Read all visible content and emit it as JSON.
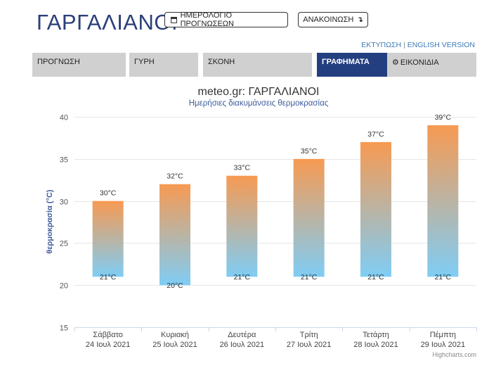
{
  "header": {
    "city_title": "ΓΑΡΓΑΛΙΑΝΟΙ",
    "calendar_button": "ΗΜΕΡΟΛΟΓΙΟ ΠΡΟΓΝΩΣΕΩΝ",
    "announce_button": "ΑΝΑΚΟΙΝΩΣΗ",
    "print_link": "ΕΚΤΥΠΩΣΗ",
    "separator": "|",
    "english_link": "ENGLISH VERSION"
  },
  "tabs": [
    {
      "label": "ΠΡΟΓΝΩΣΗ",
      "active": false
    },
    {
      "label": "ΓΥΡΗ",
      "active": false
    },
    {
      "label": "ΣΚΟΝΗ",
      "active": false
    },
    {
      "label": "ΓΡΑΦΗΜΑΤΑ",
      "active": true
    },
    {
      "label": "ΕΙΚΟΝΙΔΙΑ",
      "active": false,
      "icon": "gear-icon"
    }
  ],
  "colors": {
    "brand": "#2b3f78",
    "active_tab": "#233f80",
    "bar_top": "#f79a52",
    "bar_bottom": "#7fcdf5",
    "subtitle": "#3e5c9a"
  },
  "chart_data": {
    "type": "bar",
    "title": "meteo.gr: ΓΑΡΓΑΛΙΑΝΟΙ",
    "subtitle": "Ημερήσιες διακυμάνσεις θερμοκρασίας",
    "ylabel": "θερμοκρασία (°C)",
    "xlabel": "",
    "ylim": [
      15,
      40
    ],
    "yticks": [
      15,
      20,
      25,
      30,
      35,
      40
    ],
    "grid": true,
    "categories": [
      [
        "Σάββατο",
        "24 Ιουλ 2021"
      ],
      [
        "Κυριακή",
        "25 Ιουλ 2021"
      ],
      [
        "Δευτέρα",
        "26 Ιουλ 2021"
      ],
      [
        "Τρίτη",
        "27 Ιουλ 2021"
      ],
      [
        "Τετάρτη",
        "28 Ιουλ 2021"
      ],
      [
        "Πέμπτη",
        "29 Ιουλ 2021"
      ]
    ],
    "min": [
      21,
      20,
      21,
      21,
      21,
      21
    ],
    "max": [
      30,
      32,
      33,
      35,
      37,
      39
    ],
    "min_labels": [
      "21°C",
      "20°C",
      "21°C",
      "21°C",
      "21°C",
      "21°C"
    ],
    "max_labels": [
      "30°C",
      "32°C",
      "33°C",
      "35°C",
      "37°C",
      "39°C"
    ],
    "credits": "Highcharts.com"
  }
}
